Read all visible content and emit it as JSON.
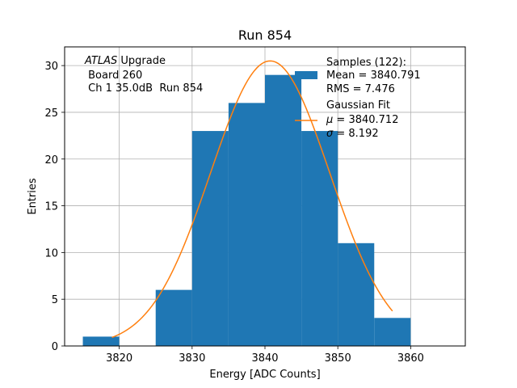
{
  "chart_data": {
    "type": "bar",
    "title": "Run 854",
    "xlabel": "Energy [ADC Counts]",
    "ylabel": "Entries",
    "xlim": [
      3812.5,
      3867.5
    ],
    "ylim": [
      0,
      32
    ],
    "xticks": [
      3820,
      3830,
      3840,
      3850,
      3860
    ],
    "yticks": [
      0,
      5,
      10,
      15,
      20,
      25,
      30
    ],
    "grid": true,
    "bin_edges": [
      3815,
      3820,
      3825,
      3830,
      3835,
      3840,
      3845,
      3850,
      3855,
      3860
    ],
    "counts": [
      1,
      0,
      6,
      23,
      26,
      29,
      23,
      11,
      3
    ],
    "histogram_color": "#1f77b4",
    "fit": {
      "type": "gaussian",
      "mu": 3840.712,
      "sigma": 8.192,
      "amplitude": 30.5,
      "x_start": 3819.0,
      "x_end": 3857.5,
      "color": "#ff7f0e"
    },
    "annotation": {
      "line1_italic": "ATLAS",
      "line1_rest": " Upgrade",
      "line2": " Board 260",
      "line3": " Ch 1 35.0dB  Run 854"
    },
    "legend": {
      "placement": "top-right",
      "hist_line1": "Samples (122):",
      "hist_line2": "Mean = 3840.791",
      "hist_line3": "RMS = 7.476",
      "fit_line1": "Gaussian Fit",
      "fit_line2_sym": "μ",
      "fit_line2_rest": " = 3840.712",
      "fit_line3_sym": "σ",
      "fit_line3_rest": " = 8.192"
    }
  }
}
